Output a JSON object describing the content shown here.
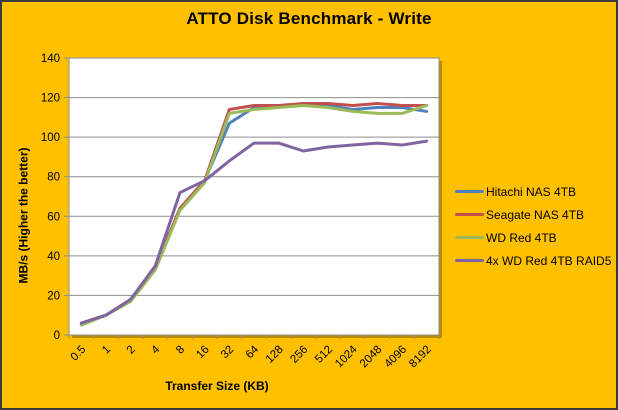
{
  "colors": {
    "background": "#FFC000",
    "plot_bg": "#FFFFFF",
    "grid": "#8E8E8E",
    "text": "#000000",
    "plot_shadow": "rgba(0,0,0,0.28)"
  },
  "chart_data": {
    "type": "line",
    "title": "ATTO Disk Benchmark - Write",
    "xlabel": "Transfer Size (KB)",
    "ylabel": "MB/s (Higher the better)",
    "categories": [
      "0.5",
      "1",
      "2",
      "4",
      "8",
      "16",
      "32",
      "64",
      "128",
      "256",
      "512",
      "1024",
      "2048",
      "4096",
      "8192"
    ],
    "series": [
      {
        "name": "Hitachi NAS 4TB",
        "color": "#4F81BD",
        "values": [
          6,
          10,
          18,
          34,
          64,
          78,
          107,
          115,
          116,
          116,
          116,
          114,
          115,
          115,
          113
        ]
      },
      {
        "name": "Seagate NAS 4TB",
        "color": "#C0504D",
        "values": [
          6,
          10,
          18,
          34,
          64,
          78,
          114,
          116,
          116,
          117,
          117,
          116,
          117,
          116,
          116
        ]
      },
      {
        "name": "WD Red 4TB",
        "color": "#9BBB59",
        "values": [
          5,
          10,
          17,
          33,
          63,
          77,
          112,
          114,
          115,
          116,
          115,
          113,
          112,
          112,
          116
        ]
      },
      {
        "name": "4x WD Red 4TB RAID5",
        "color": "#8064A2",
        "values": [
          6,
          10,
          18,
          35,
          72,
          78,
          88,
          97,
          97,
          93,
          95,
          96,
          97,
          96,
          98
        ]
      }
    ],
    "ylim": [
      0,
      140
    ],
    "yticks": [
      0,
      20,
      40,
      60,
      80,
      100,
      120,
      140
    ],
    "grid": "horizontal",
    "legend_position": "right",
    "x_tick_rotation": -45
  }
}
